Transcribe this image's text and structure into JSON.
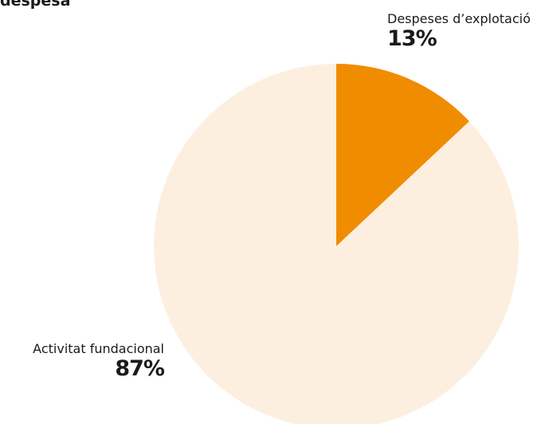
{
  "chart_data": {
    "type": "pie",
    "title": "despesa",
    "slices": [
      {
        "label": "Despeses d’explotació",
        "percent_label": "13%",
        "value": 13,
        "color": "#f08c00"
      },
      {
        "label": "Activitat fundacional",
        "percent_label": "87%",
        "value": 87,
        "color": "#fdefe0"
      }
    ],
    "start_angle_deg": 0,
    "direction": "clockwise"
  }
}
